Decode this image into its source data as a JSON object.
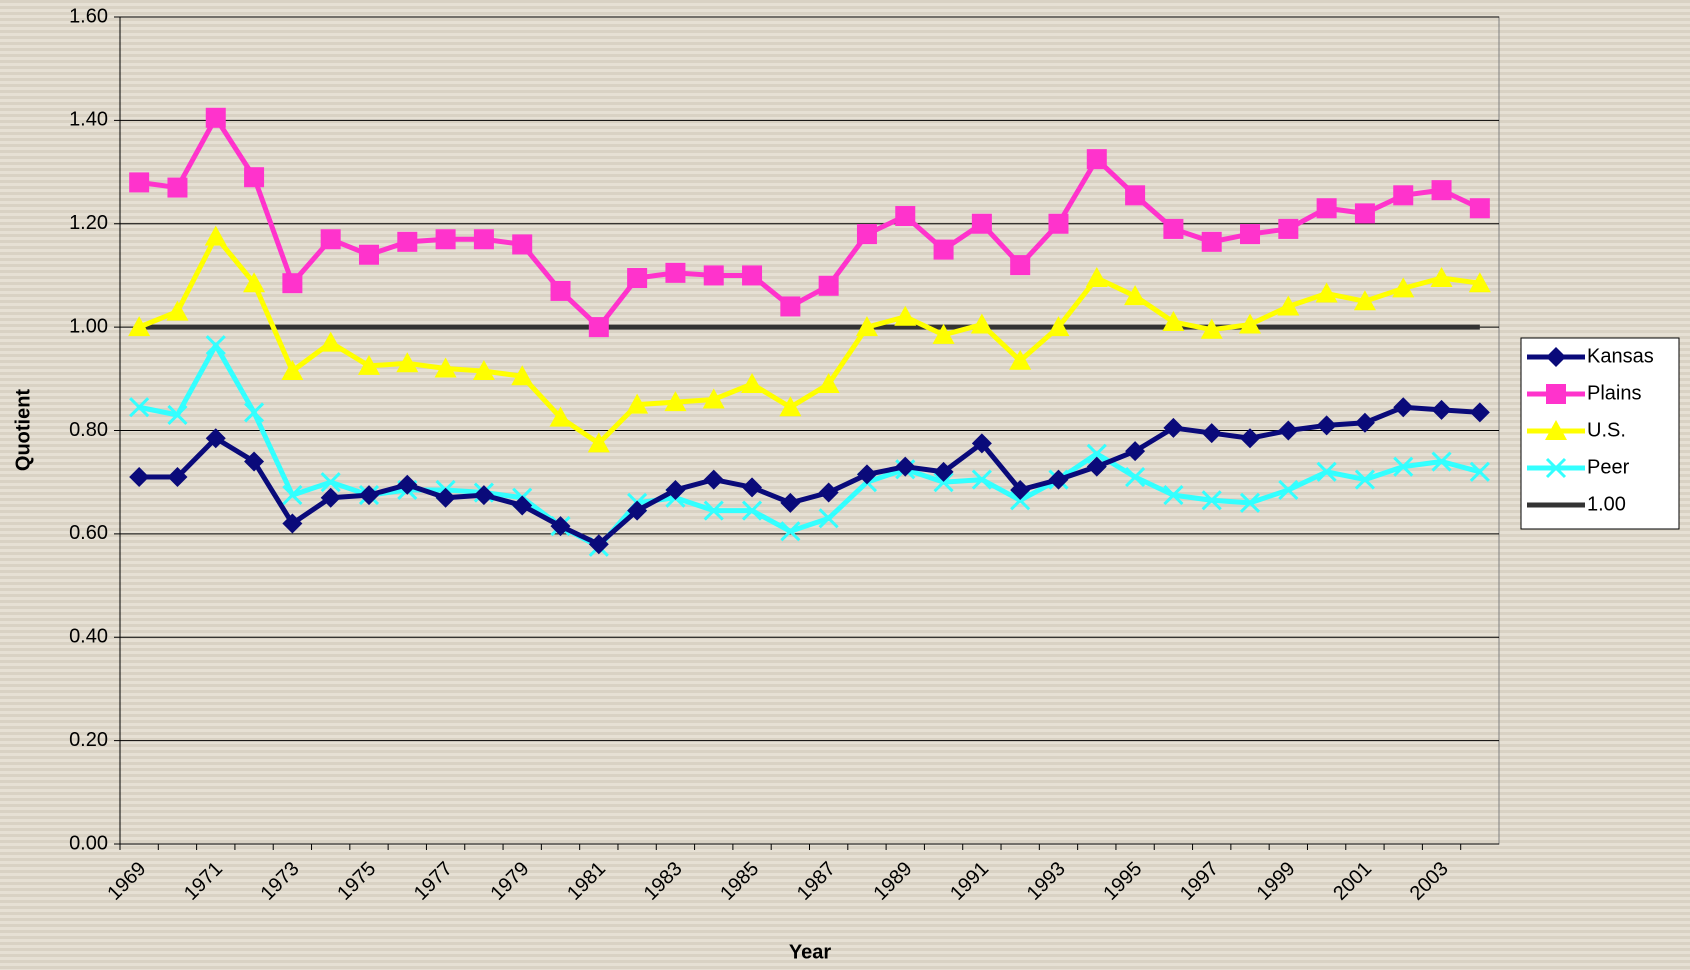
{
  "chart_data": {
    "type": "line",
    "x_label": "Year",
    "y_label": "Quotient",
    "categories": [
      "1969",
      null,
      "1971",
      null,
      "1973",
      null,
      "1975",
      null,
      "1977",
      null,
      "1979",
      null,
      "1981",
      null,
      "1983",
      null,
      "1985",
      null,
      "1987",
      null,
      "1989",
      null,
      "1991",
      null,
      "1993",
      null,
      "1995",
      null,
      "1997",
      null,
      "1999",
      null,
      "2001",
      null,
      "2003",
      null
    ],
    "series": [
      {
        "name": "Kansas",
        "color": "#0a0a7a",
        "marker": "diamond",
        "values": [
          0.71,
          0.71,
          0.785,
          0.74,
          0.62,
          0.67,
          0.675,
          0.695,
          0.67,
          0.675,
          0.655,
          0.615,
          0.58,
          0.645,
          0.685,
          0.705,
          0.69,
          0.66,
          0.68,
          0.715,
          0.73,
          0.72,
          0.775,
          0.685,
          0.705,
          0.73,
          0.76,
          0.805,
          0.795,
          0.785,
          0.8,
          0.81,
          0.815,
          0.845,
          0.84,
          0.835
        ]
      },
      {
        "name": "Plains",
        "color": "#ff33cc",
        "marker": "square",
        "values": [
          1.28,
          1.27,
          1.405,
          1.29,
          1.085,
          1.17,
          1.14,
          1.165,
          1.17,
          1.17,
          1.16,
          1.07,
          1.0,
          1.095,
          1.105,
          1.1,
          1.1,
          1.04,
          1.08,
          1.18,
          1.215,
          1.15,
          1.2,
          1.12,
          1.2,
          1.325,
          1.255,
          1.19,
          1.165,
          1.18,
          1.19,
          1.23,
          1.22,
          1.255,
          1.265,
          1.23
        ]
      },
      {
        "name": "U.S.",
        "color": "#ffff00",
        "marker": "triangle",
        "values": [
          1.0,
          1.03,
          1.175,
          1.085,
          0.915,
          0.97,
          0.925,
          0.93,
          0.92,
          0.915,
          0.905,
          0.825,
          0.775,
          0.85,
          0.855,
          0.86,
          0.89,
          0.845,
          0.89,
          1.0,
          1.02,
          0.985,
          1.005,
          0.935,
          1.0,
          1.095,
          1.06,
          1.01,
          0.995,
          1.005,
          1.04,
          1.065,
          1.05,
          1.075,
          1.095,
          1.085
        ]
      },
      {
        "name": "Peer",
        "color": "#33ffff",
        "marker": "x",
        "values": [
          0.845,
          0.83,
          0.965,
          0.835,
          0.675,
          0.7,
          0.675,
          0.685,
          0.685,
          0.68,
          0.67,
          0.615,
          0.575,
          0.66,
          0.67,
          0.645,
          0.645,
          0.605,
          0.63,
          0.7,
          0.725,
          0.7,
          0.705,
          0.665,
          0.705,
          0.755,
          0.71,
          0.675,
          0.665,
          0.66,
          0.685,
          0.72,
          0.705,
          0.73,
          0.74,
          0.72
        ]
      },
      {
        "name": "1.00",
        "color": "#333333",
        "marker": "none",
        "values": [
          1,
          1,
          1,
          1,
          1,
          1,
          1,
          1,
          1,
          1,
          1,
          1,
          1,
          1,
          1,
          1,
          1,
          1,
          1,
          1,
          1,
          1,
          1,
          1,
          1,
          1,
          1,
          1,
          1,
          1,
          1,
          1,
          1,
          1,
          1,
          1
        ]
      }
    ],
    "ylim": [
      0,
      1.6
    ],
    "yticks": [
      {
        "value": 0,
        "label": "0.00"
      },
      {
        "value": 0.2,
        "label": "0.20"
      },
      {
        "value": 0.4,
        "label": "0.40"
      },
      {
        "value": 0.6,
        "label": "0.60"
      },
      {
        "value": 0.8,
        "label": "0.80"
      },
      {
        "value": 1,
        "label": "1.00"
      },
      {
        "value": 1.2,
        "label": "1.20"
      },
      {
        "value": 1.4,
        "label": "1.40"
      },
      {
        "value": 1.6,
        "label": "1.60"
      }
    ],
    "grid": true,
    "legend": "right"
  }
}
